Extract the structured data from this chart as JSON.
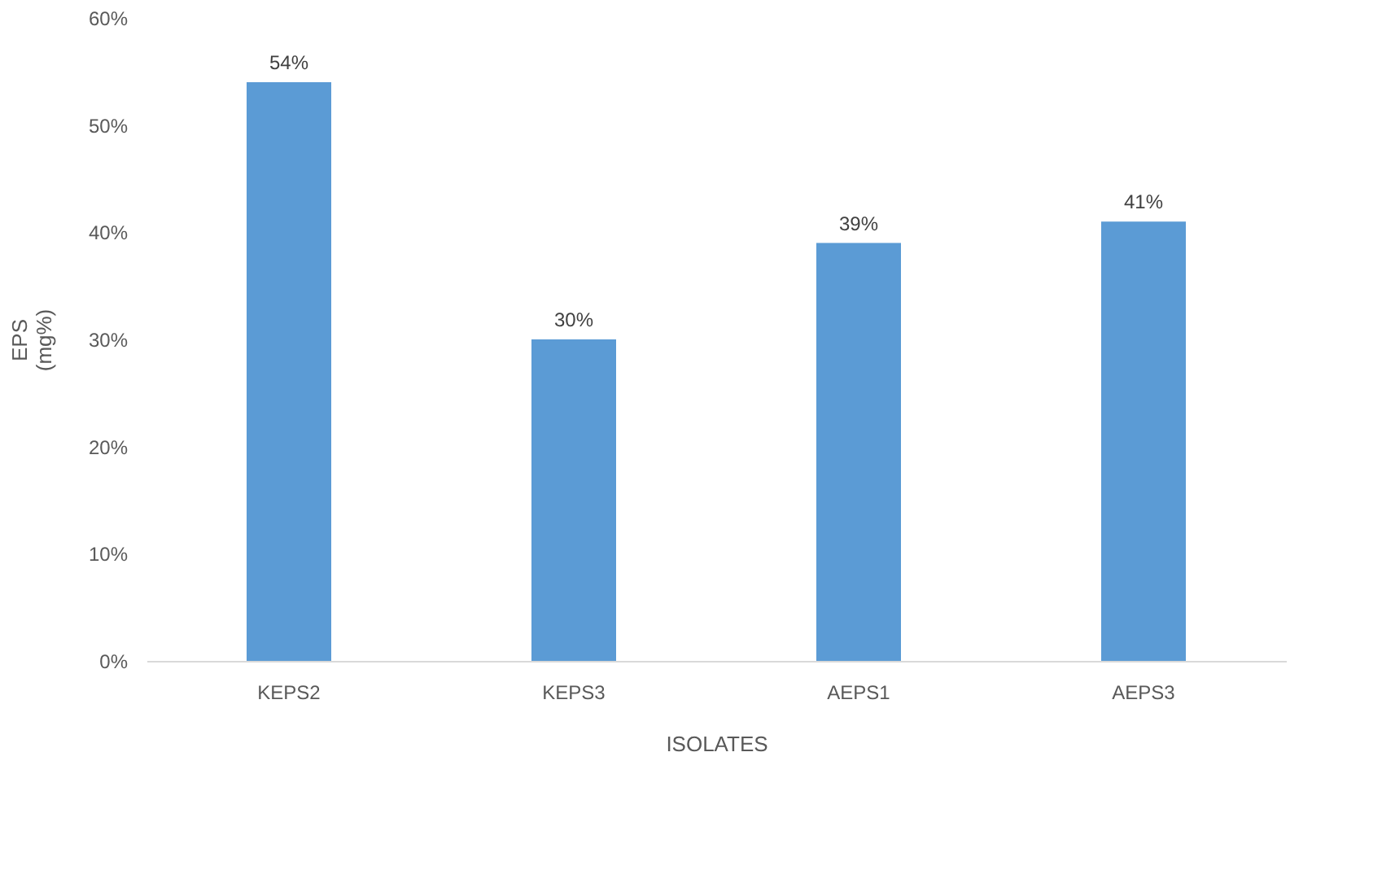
{
  "chart_data": {
    "type": "bar",
    "xlabel": "ISOLATES",
    "ylabel": "EPS (mg%)",
    "categories": [
      "KEPS2",
      "KEPS3",
      "AEPS1",
      "AEPS3"
    ],
    "values": [
      54,
      30,
      39,
      41
    ],
    "value_labels": [
      "54%",
      "30%",
      "39%",
      "41%"
    ],
    "color": "#5b9bd5",
    "ylim": [
      0,
      60
    ],
    "yticks": [
      {
        "value": 0,
        "label": "0%"
      },
      {
        "value": 10,
        "label": "10%"
      },
      {
        "value": 20,
        "label": "20%"
      },
      {
        "value": 30,
        "label": "30%"
      },
      {
        "value": 40,
        "label": "40%"
      },
      {
        "value": 50,
        "label": "50%"
      },
      {
        "value": 60,
        "label": "60%"
      }
    ],
    "grid": false
  }
}
